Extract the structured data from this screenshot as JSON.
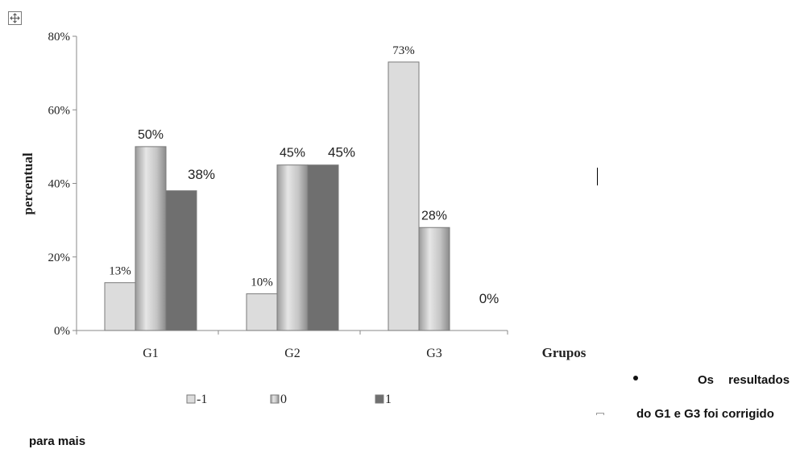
{
  "chart_data": {
    "type": "bar",
    "ylabel": "percentual",
    "xlabel": "Grupos",
    "categories": [
      "G1",
      "G2",
      "G3"
    ],
    "yticks": [
      "0%",
      "20%",
      "40%",
      "60%",
      "80%"
    ],
    "ylim": [
      0,
      80
    ],
    "series": [
      {
        "name": "-1",
        "color": "#dcdcdc",
        "values": [
          13,
          10,
          73
        ],
        "labels": [
          "13%",
          "10%",
          "73%"
        ]
      },
      {
        "name": "0",
        "color": "#bdbdbd",
        "values": [
          50,
          45,
          28
        ],
        "labels": [
          "50%",
          "45%",
          "28%"
        ]
      },
      {
        "name": "1",
        "color": "#6f6f6f",
        "values": [
          38,
          45,
          0
        ],
        "labels": [
          "38%",
          "45%",
          "0%"
        ]
      }
    ],
    "legend_position": "bottom",
    "grid": false
  },
  "document": {
    "note_line1": "Os resultados",
    "note_line2": "do G1 e G3 foi corrigido",
    "note_line3": "para mais"
  },
  "icons": {
    "move_handle": "move-cross-icon"
  }
}
